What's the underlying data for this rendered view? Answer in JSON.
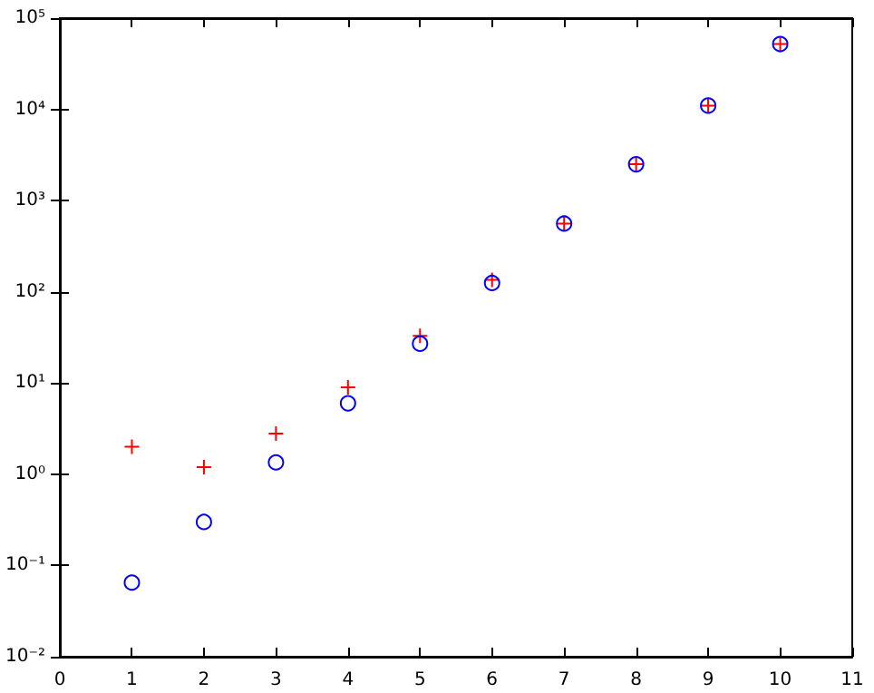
{
  "chart_data": {
    "type": "scatter",
    "x": [
      1,
      2,
      3,
      4,
      5,
      6,
      7,
      8,
      9,
      10
    ],
    "series": [
      {
        "color": "#ff0000",
        "marker": "cross",
        "values": [
          2,
          1.2,
          2.8,
          9,
          33,
          135,
          560,
          2500,
          11000,
          52000
        ]
      },
      {
        "color": "#0000ff",
        "marker": "circle",
        "values": [
          0.065,
          0.3,
          1.35,
          6,
          27,
          125,
          560,
          2500,
          11000,
          52000
        ]
      }
    ],
    "xlim": [
      0,
      11
    ],
    "xticks": [
      0,
      1,
      2,
      3,
      4,
      5,
      6,
      7,
      8,
      9,
      10,
      11
    ],
    "ylim": [
      0.01,
      100000
    ],
    "log": true,
    "yticks": [
      {
        "value": 0.01,
        "label": "10⁻²"
      },
      {
        "value": 0.1,
        "label": "10⁻¹"
      },
      {
        "value": 1,
        "label": "10⁰"
      },
      {
        "value": 10,
        "label": "10¹"
      },
      {
        "value": 100,
        "label": "10²"
      },
      {
        "value": 1000,
        "label": "10³"
      },
      {
        "value": 10000,
        "label": "10⁴"
      },
      {
        "value": 100000,
        "label": "10⁵"
      }
    ],
    "grid": false
  }
}
